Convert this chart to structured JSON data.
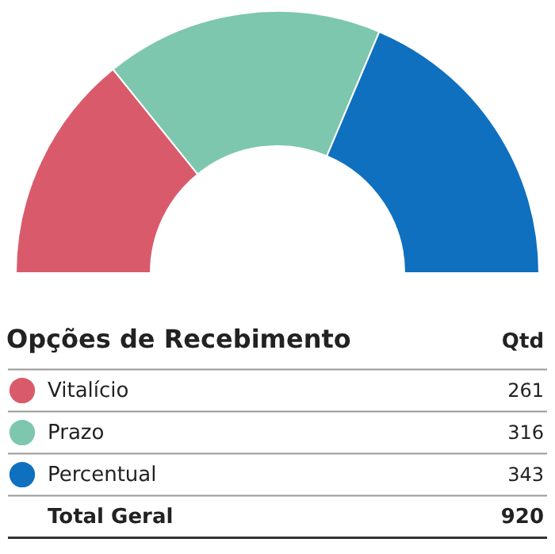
{
  "chart_data": {
    "type": "donut",
    "title": "Opções de Recebimento",
    "categories": [
      "Vitalício",
      "Prazo",
      "Percentual"
    ],
    "values": [
      261,
      316,
      343
    ],
    "colors": [
      "#d95b6b",
      "#7dc7ae",
      "#0f70bf"
    ],
    "data_labels": true,
    "legend": "bottom",
    "annotations": [
      "Qtd",
      "Total Geral",
      "920"
    ]
  }
}
